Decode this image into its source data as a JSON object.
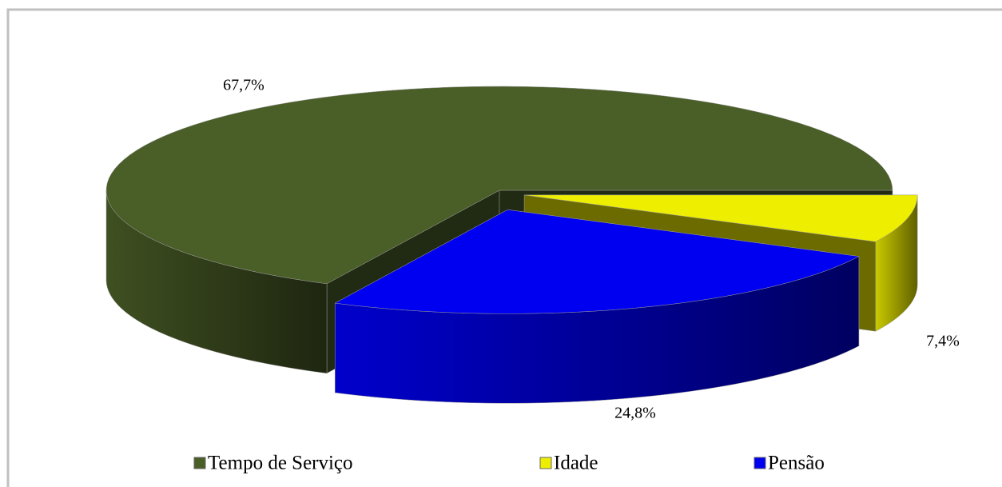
{
  "chart_data": {
    "type": "pie",
    "categories": [
      "Tempo de Serviço",
      "Idade",
      "Pensão"
    ],
    "values": [
      67.7,
      7.4,
      24.8
    ],
    "value_labels": [
      "67,7%",
      "7,4%",
      "24,8%"
    ],
    "colors": [
      "#4a5e27",
      "#eeee00",
      "#0000f0"
    ],
    "legend": "bottom"
  }
}
